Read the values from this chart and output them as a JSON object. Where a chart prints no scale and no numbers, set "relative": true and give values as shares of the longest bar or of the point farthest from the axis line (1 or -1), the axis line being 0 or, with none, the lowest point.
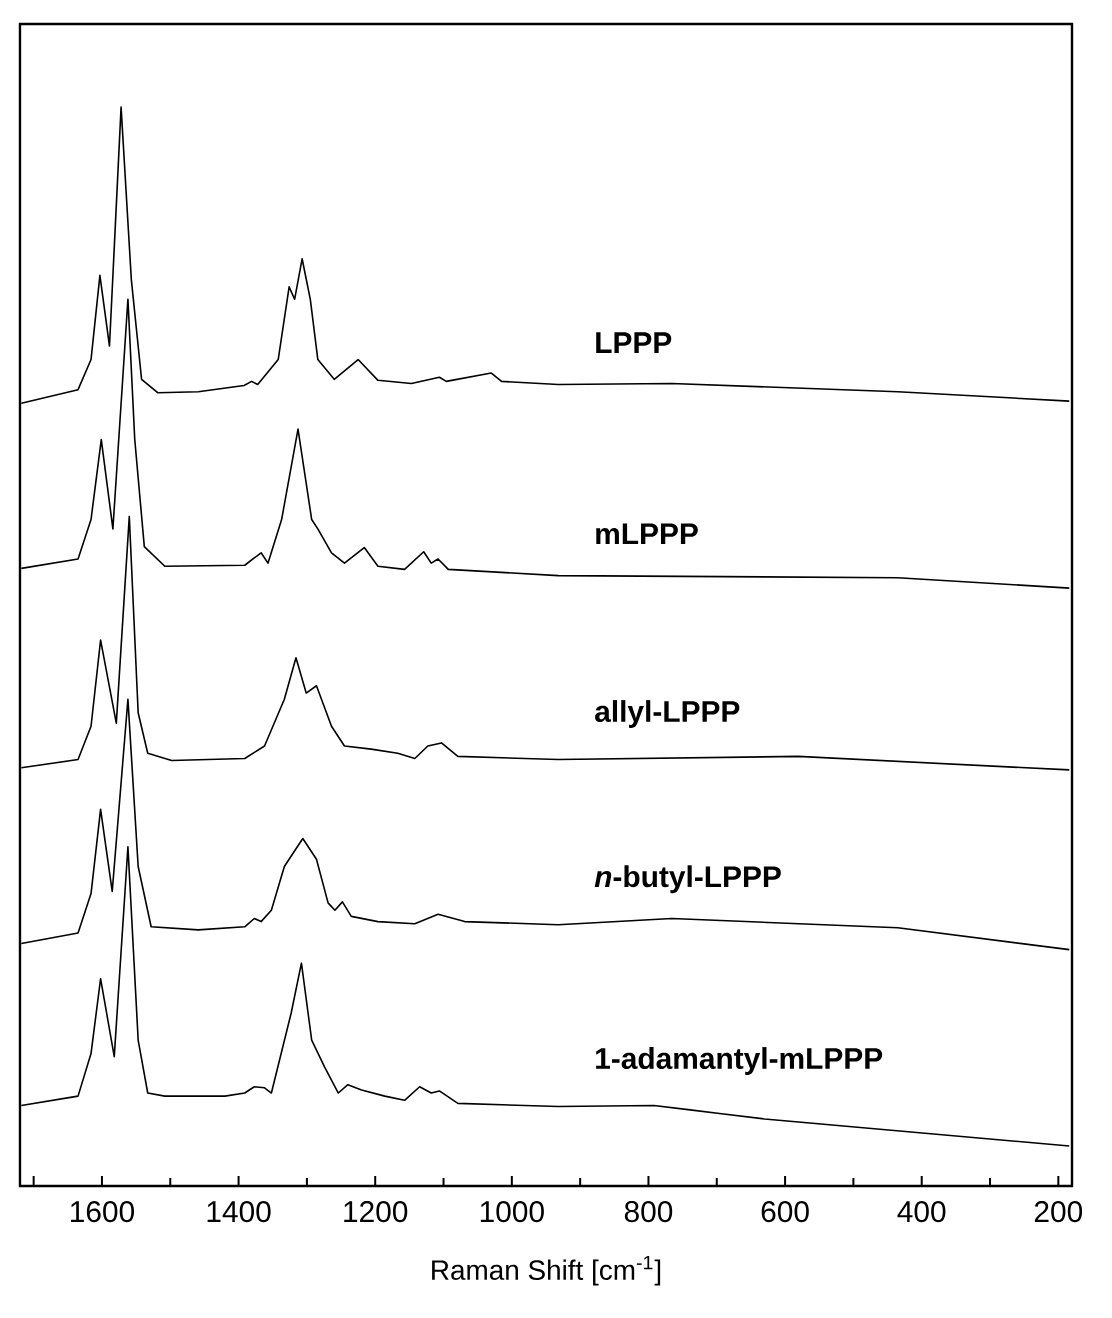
{
  "chart_data": {
    "type": "line",
    "xlabel": "Raman Shift [cm$^{-1}$]",
    "relative": true,
    "tick_labels": "x",
    "xlim": [
      1720,
      180
    ],
    "xticks": [
      1600,
      1400,
      1200,
      1000,
      800,
      600,
      400,
      200
    ],
    "series": [
      {
        "name": "LPPP",
        "color": "#000000",
        "x": [
          1718,
          1635,
          1616,
          1603,
          1589,
          1572,
          1557,
          1542,
          1518,
          1459,
          1392,
          1381,
          1372,
          1342,
          1326,
          1318,
          1307,
          1295,
          1284,
          1260,
          1225,
          1196,
          1147,
          1106,
          1096,
          1030,
          1015,
          932,
          766,
          435,
          184
        ],
        "values": [
          0.715,
          0.728,
          0.757,
          0.838,
          0.77,
          1.0,
          0.834,
          0.738,
          0.725,
          0.726,
          0.732,
          0.736,
          0.733,
          0.757,
          0.827,
          0.815,
          0.854,
          0.815,
          0.757,
          0.738,
          0.757,
          0.737,
          0.734,
          0.74,
          0.736,
          0.744,
          0.736,
          0.733,
          0.734,
          0.726,
          0.717
        ]
      },
      {
        "name": "mLPPP",
        "color": "#000000",
        "x": [
          1718,
          1635,
          1616,
          1601,
          1584,
          1562,
          1552,
          1538,
          1508,
          1391,
          1377,
          1367,
          1357,
          1337,
          1313,
          1293,
          1284,
          1264,
          1245,
          1216,
          1196,
          1157,
          1129,
          1118,
          1108,
          1093,
          932,
          435,
          184
        ],
        "values": [
          0.556,
          0.565,
          0.603,
          0.68,
          0.594,
          0.815,
          0.68,
          0.577,
          0.558,
          0.559,
          0.566,
          0.571,
          0.561,
          0.603,
          0.69,
          0.603,
          0.594,
          0.571,
          0.561,
          0.576,
          0.558,
          0.555,
          0.572,
          0.561,
          0.565,
          0.555,
          0.549,
          0.547,
          0.537
        ]
      },
      {
        "name": "allyl-LPPP",
        "color": "#000000",
        "x": [
          1718,
          1635,
          1616,
          1602,
          1579,
          1560,
          1547,
          1533,
          1498,
          1391,
          1362,
          1333,
          1316,
          1301,
          1286,
          1264,
          1245,
          1206,
          1167,
          1142,
          1123,
          1103,
          1079,
          932,
          581,
          184
        ],
        "values": [
          0.364,
          0.372,
          0.404,
          0.487,
          0.407,
          0.606,
          0.417,
          0.378,
          0.371,
          0.373,
          0.385,
          0.43,
          0.47,
          0.436,
          0.443,
          0.404,
          0.385,
          0.382,
          0.378,
          0.373,
          0.385,
          0.388,
          0.375,
          0.372,
          0.375,
          0.362
        ]
      },
      {
        "name": "*n*-butyl-LPPP",
        "color": "#000000",
        "x": [
          1718,
          1635,
          1616,
          1602,
          1585,
          1562,
          1547,
          1528,
          1459,
          1391,
          1377,
          1367,
          1352,
          1333,
          1306,
          1286,
          1269,
          1259,
          1248,
          1235,
          1196,
          1142,
          1108,
          1069,
          932,
          766,
          435,
          184
        ],
        "values": [
          0.195,
          0.205,
          0.243,
          0.324,
          0.245,
          0.43,
          0.269,
          0.211,
          0.208,
          0.211,
          0.219,
          0.216,
          0.227,
          0.269,
          0.296,
          0.276,
          0.234,
          0.227,
          0.235,
          0.221,
          0.216,
          0.214,
          0.223,
          0.216,
          0.213,
          0.219,
          0.21,
          0.189
        ]
      },
      {
        "name": "1-adamantyl-mLPPP",
        "color": "#000000",
        "x": [
          1718,
          1635,
          1616,
          1602,
          1582,
          1562,
          1547,
          1533,
          1508,
          1420,
          1391,
          1377,
          1362,
          1352,
          1323,
          1308,
          1293,
          1274,
          1254,
          1240,
          1220,
          1186,
          1157,
          1135,
          1118,
          1106,
          1079,
          932,
          792,
          742,
          693,
          630,
          184
        ],
        "values": [
          0.039,
          0.048,
          0.089,
          0.161,
          0.086,
          0.288,
          0.102,
          0.051,
          0.048,
          0.048,
          0.051,
          0.057,
          0.056,
          0.051,
          0.128,
          0.176,
          0.102,
          0.076,
          0.051,
          0.059,
          0.054,
          0.048,
          0.044,
          0.057,
          0.051,
          0.053,
          0.041,
          0.038,
          0.039,
          0.035,
          0.031,
          0.026,
          0.0
        ]
      }
    ]
  }
}
